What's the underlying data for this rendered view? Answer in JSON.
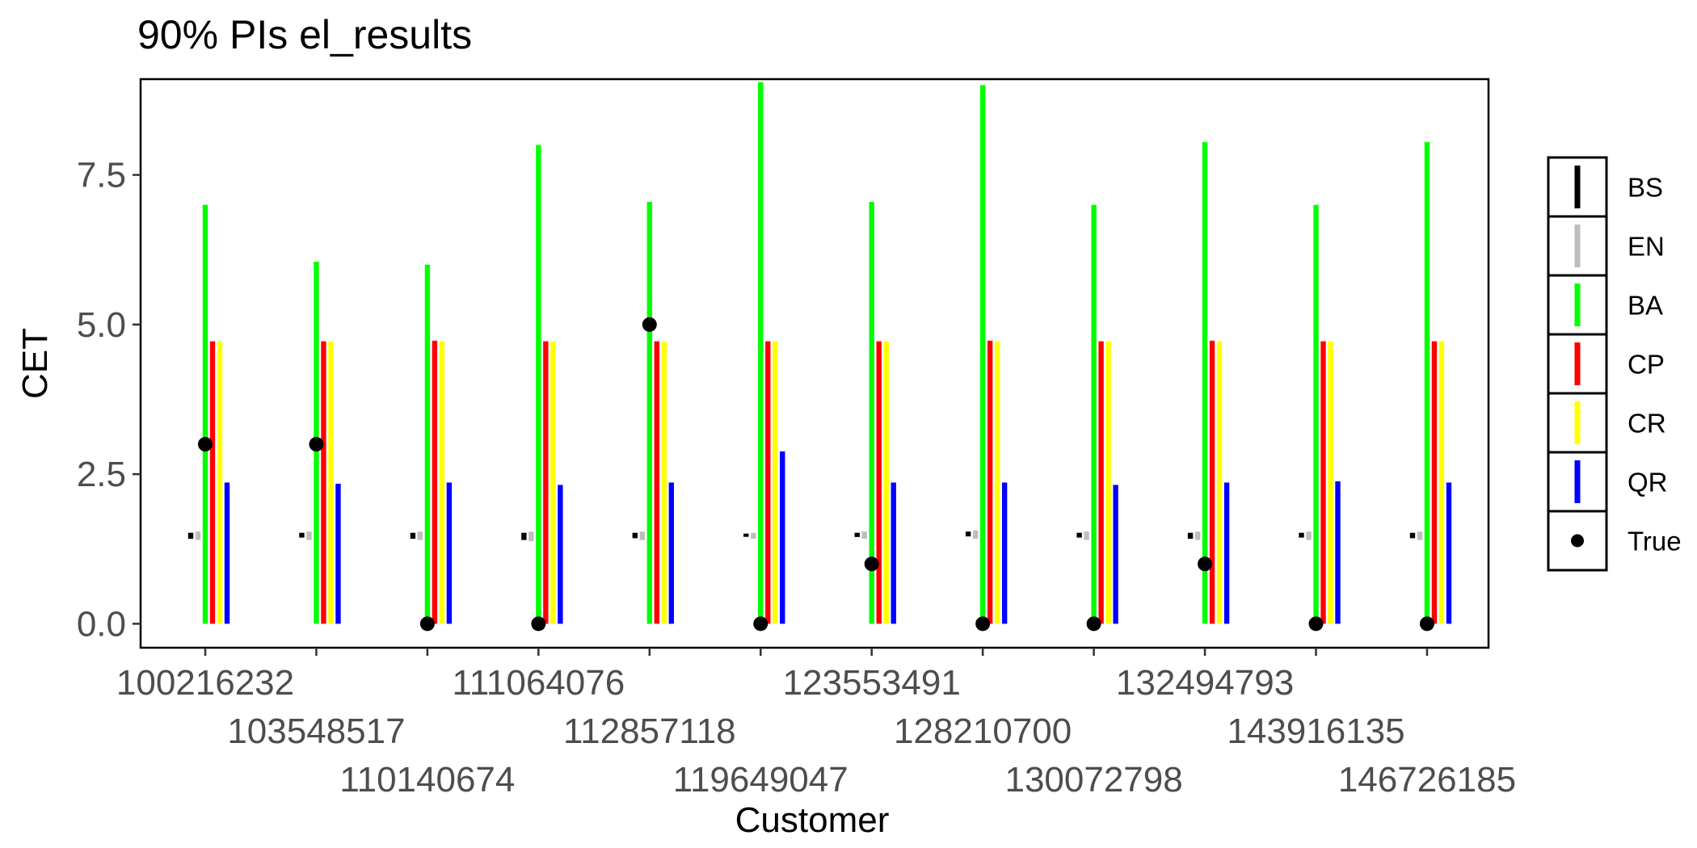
{
  "chart_data": {
    "type": "errorbar",
    "title": "90% PIs el_results",
    "xlabel": "Customer",
    "ylabel": "CET",
    "ylim": [
      -0.4,
      9.1
    ],
    "yticks": [
      0.0,
      2.5,
      5.0,
      7.5
    ],
    "ytick_labels": [
      "0.0",
      "2.5",
      "5.0",
      "7.5"
    ],
    "grid": false,
    "legend_position": "right",
    "categories": [
      "100216232",
      "103548517",
      "110140674",
      "111064076",
      "112857118",
      "119649047",
      "123553491",
      "128210700",
      "130072798",
      "132494793",
      "143916135",
      "146726185"
    ],
    "series": [
      {
        "name": "BS",
        "color": "#000000",
        "lower": [
          1.42,
          1.44,
          1.42,
          1.4,
          1.43,
          1.44,
          1.45,
          1.46,
          1.44,
          1.42,
          1.44,
          1.43
        ],
        "upper": [
          1.52,
          1.52,
          1.52,
          1.52,
          1.52,
          1.48,
          1.52,
          1.54,
          1.52,
          1.52,
          1.52,
          1.52
        ]
      },
      {
        "name": "EN",
        "color": "#bebebe",
        "lower": [
          1.4,
          1.4,
          1.4,
          1.38,
          1.4,
          1.42,
          1.42,
          1.42,
          1.4,
          1.4,
          1.4,
          1.4
        ],
        "upper": [
          1.54,
          1.54,
          1.54,
          1.54,
          1.54,
          1.52,
          1.54,
          1.56,
          1.54,
          1.54,
          1.54,
          1.54
        ]
      },
      {
        "name": "BA",
        "color": "#00ff00",
        "lower": [
          0,
          0,
          0,
          0,
          0,
          0,
          0,
          0,
          0,
          0,
          0,
          0
        ],
        "upper": [
          7.0,
          6.05,
          6.0,
          8.0,
          7.05,
          9.05,
          7.05,
          9.0,
          7.0,
          8.05,
          7.0,
          8.05
        ]
      },
      {
        "name": "CP",
        "color": "#ff0000",
        "lower": [
          0,
          0,
          0,
          0,
          0,
          0,
          0,
          0,
          0,
          0,
          0,
          0
        ],
        "upper": [
          4.72,
          4.72,
          4.73,
          4.72,
          4.72,
          4.72,
          4.72,
          4.73,
          4.72,
          4.73,
          4.72,
          4.72
        ]
      },
      {
        "name": "CR",
        "color": "#ffff00",
        "lower": [
          0,
          0,
          0,
          0,
          0,
          0,
          0,
          0,
          0,
          0,
          0,
          0
        ],
        "upper": [
          4.72,
          4.72,
          4.72,
          4.72,
          4.72,
          4.72,
          4.72,
          4.72,
          4.72,
          4.72,
          4.72,
          4.72
        ]
      },
      {
        "name": "QR",
        "color": "#0000ff",
        "lower": [
          0,
          0,
          0,
          0,
          0,
          0,
          0,
          0,
          0,
          0,
          0,
          0
        ],
        "upper": [
          2.36,
          2.34,
          2.36,
          2.32,
          2.36,
          2.88,
          2.36,
          2.36,
          2.32,
          2.36,
          2.38,
          2.36
        ]
      }
    ],
    "points": {
      "name": "True",
      "color": "#000000",
      "values": [
        3,
        3,
        0,
        0,
        5,
        0,
        1,
        0,
        0,
        1,
        0,
        0
      ]
    }
  }
}
